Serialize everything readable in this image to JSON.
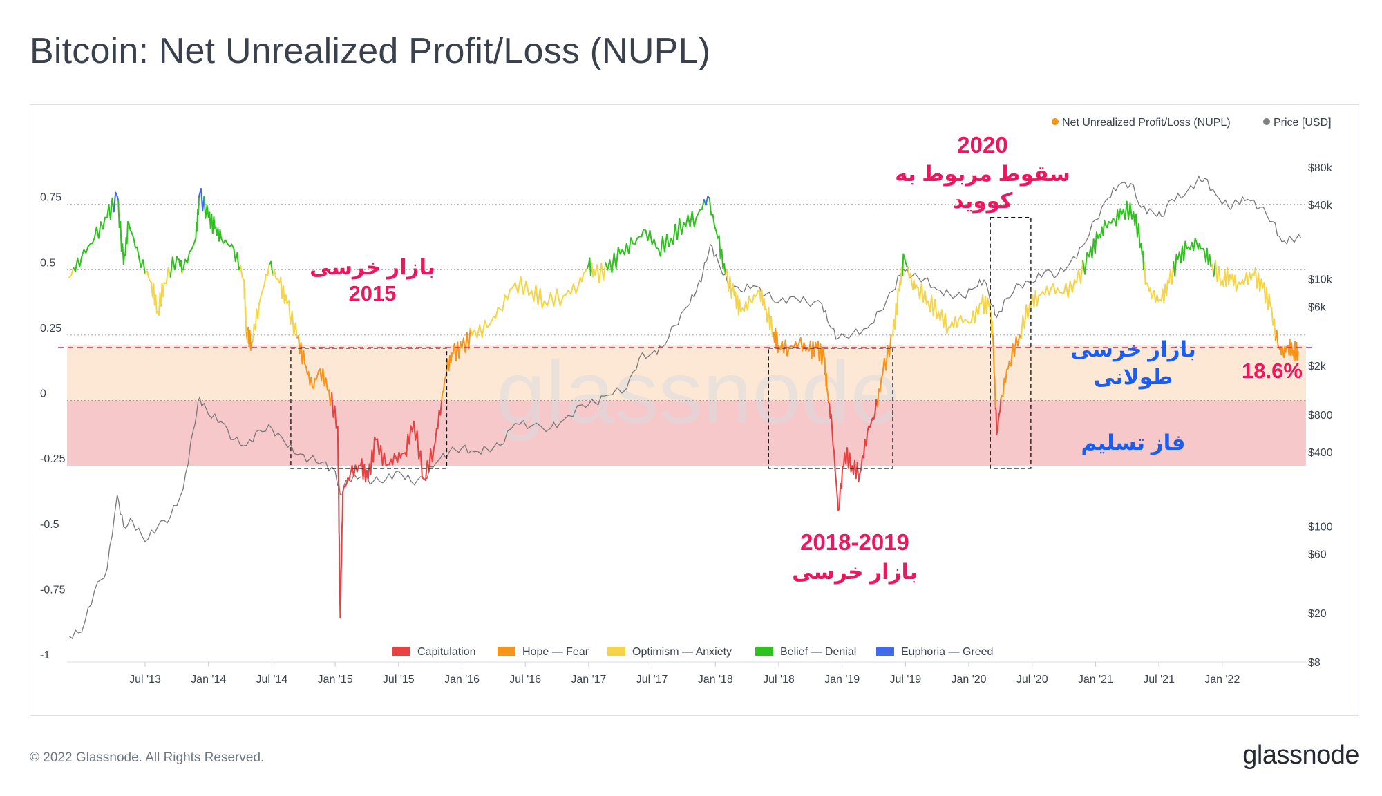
{
  "title": "Bitcoin: Net Unrealized Profit/Loss (NUPL)",
  "footer": "© 2022 Glassnode. All Rights Reserved.",
  "brand": "glassnode",
  "watermark": "glassnode",
  "legend_top": [
    {
      "label": "Net Unrealized Profit/Loss (NUPL)",
      "color": "#f7931a"
    },
    {
      "label": "Price [USD]",
      "color": "#808080"
    }
  ],
  "legend_bottom": [
    {
      "label": "Capitulation",
      "color": "#e84142"
    },
    {
      "label": "Hope — Fear",
      "color": "#f7931a"
    },
    {
      "label": "Optimism — Anxiety",
      "color": "#f5d547"
    },
    {
      "label": "Belief — Denial",
      "color": "#2ec21c"
    },
    {
      "label": "Euphoria — Greed",
      "color": "#4169e8"
    }
  ],
  "annotations": {
    "bear2015": [
      "بازار خرسی",
      "2015"
    ],
    "covid2020": [
      "2020",
      "سقوط مربوط به",
      "کووید"
    ],
    "bear2018": [
      "2018-2019",
      "بازار خرسی"
    ],
    "long_bear": [
      "بازار خرسی",
      "طولانی"
    ],
    "capitulation_phase": "فاز تسلیم",
    "current_value": "18.6%"
  },
  "colors": {
    "annotation_red": "#f0165d",
    "annotation_blue": "#1a5df0",
    "band_fear": "#fde8d5",
    "band_capitulation": "#f7c8ca",
    "price_line": "#7a7a7a"
  },
  "chart_data": {
    "type": "line",
    "title": "Bitcoin: Net Unrealized Profit/Loss (NUPL)",
    "x_ticks": [
      "Jul '13",
      "Jan '14",
      "Jul '14",
      "Jan '15",
      "Jul '15",
      "Jan '16",
      "Jul '16",
      "Jan '17",
      "Jul '17",
      "Jan '18",
      "Jul '18",
      "Jan '19",
      "Jul '19",
      "Jan '20",
      "Jul '20",
      "Jan '21",
      "Jul '21",
      "Jan '22"
    ],
    "xlim": [
      2012.9,
      2022.65
    ],
    "y_left": {
      "ticks": [
        "0.75",
        "0.5",
        "0.25",
        "0",
        "-0.25",
        "-0.5",
        "-0.75",
        "-1"
      ],
      "ylim": [
        -1,
        0.95
      ]
    },
    "y_right": {
      "ticks": [
        "$80k",
        "$40k",
        "$10k",
        "$6k",
        "$2k",
        "$800",
        "$400",
        "$100",
        "$60",
        "$20",
        "$8"
      ],
      "values": [
        80000,
        40000,
        10000,
        6000,
        2000,
        800,
        400,
        100,
        60,
        20,
        8
      ],
      "scale": "log"
    },
    "zones": [
      {
        "name": "Capitulation",
        "from": -1,
        "to": 0,
        "color": "#e84142"
      },
      {
        "name": "Hope — Fear",
        "from": 0,
        "to": 0.25,
        "color": "#f7931a"
      },
      {
        "name": "Optimism — Anxiety",
        "from": 0.25,
        "to": 0.5,
        "color": "#f5d547"
      },
      {
        "name": "Belief — Denial",
        "from": 0.5,
        "to": 0.75,
        "color": "#2ec21c"
      },
      {
        "name": "Euphoria — Greed",
        "from": 0.75,
        "to": 1,
        "color": "#4169e8"
      }
    ],
    "reference_line": {
      "value": 0.186,
      "label": "18.6%"
    },
    "shaded_bands": [
      {
        "from": 0,
        "to": 0.21,
        "label": "بازار خرسی طولانی"
      },
      {
        "from": -0.25,
        "to": 0,
        "label": "فاز تسلیم"
      }
    ],
    "highlight_boxes": [
      {
        "x_from": 2014.65,
        "x_to": 2015.88,
        "y_from": -0.26,
        "y_to": 0.2,
        "label": "2015"
      },
      {
        "x_from": 2018.42,
        "x_to": 2019.4,
        "y_from": -0.26,
        "y_to": 0.2,
        "label": "2018-2019"
      },
      {
        "x_from": 2020.17,
        "x_to": 2020.49,
        "y_from": -0.26,
        "y_to": 0.7,
        "label": "2020"
      }
    ],
    "series": [
      {
        "name": "Net Unrealized Profit/Loss (NUPL)",
        "axis": "left",
        "points": [
          [
            2012.9,
            0.47
          ],
          [
            2013.0,
            0.55
          ],
          [
            2013.1,
            0.62
          ],
          [
            2013.2,
            0.7
          ],
          [
            2013.28,
            0.78
          ],
          [
            2013.33,
            0.52
          ],
          [
            2013.37,
            0.68
          ],
          [
            2013.45,
            0.55
          ],
          [
            2013.55,
            0.45
          ],
          [
            2013.6,
            0.34
          ],
          [
            2013.65,
            0.45
          ],
          [
            2013.75,
            0.55
          ],
          [
            2013.8,
            0.5
          ],
          [
            2013.9,
            0.62
          ],
          [
            2013.93,
            0.79
          ],
          [
            2014.0,
            0.7
          ],
          [
            2014.05,
            0.66
          ],
          [
            2014.1,
            0.62
          ],
          [
            2014.2,
            0.58
          ],
          [
            2014.28,
            0.46
          ],
          [
            2014.3,
            0.26
          ],
          [
            2014.34,
            0.22
          ],
          [
            2014.4,
            0.37
          ],
          [
            2014.48,
            0.52
          ],
          [
            2014.56,
            0.45
          ],
          [
            2014.62,
            0.37
          ],
          [
            2014.7,
            0.24
          ],
          [
            2014.76,
            0.14
          ],
          [
            2014.82,
            0.05
          ],
          [
            2014.88,
            0.12
          ],
          [
            2014.95,
            0.04
          ],
          [
            2015.02,
            -0.1
          ],
          [
            2015.04,
            -0.83
          ],
          [
            2015.06,
            -0.35
          ],
          [
            2015.12,
            -0.28
          ],
          [
            2015.2,
            -0.25
          ],
          [
            2015.26,
            -0.3
          ],
          [
            2015.32,
            -0.15
          ],
          [
            2015.4,
            -0.25
          ],
          [
            2015.48,
            -0.22
          ],
          [
            2015.55,
            -0.2
          ],
          [
            2015.62,
            -0.08
          ],
          [
            2015.7,
            -0.3
          ],
          [
            2015.78,
            -0.18
          ],
          [
            2015.84,
            0.0
          ],
          [
            2015.88,
            0.12
          ],
          [
            2015.93,
            0.18
          ],
          [
            2016.0,
            0.2
          ],
          [
            2016.08,
            0.25
          ],
          [
            2016.2,
            0.28
          ],
          [
            2016.3,
            0.35
          ],
          [
            2016.42,
            0.45
          ],
          [
            2016.55,
            0.42
          ],
          [
            2016.65,
            0.38
          ],
          [
            2016.8,
            0.4
          ],
          [
            2016.92,
            0.44
          ],
          [
            2017.0,
            0.52
          ],
          [
            2017.05,
            0.48
          ],
          [
            2017.15,
            0.5
          ],
          [
            2017.25,
            0.56
          ],
          [
            2017.35,
            0.6
          ],
          [
            2017.45,
            0.65
          ],
          [
            2017.55,
            0.58
          ],
          [
            2017.65,
            0.62
          ],
          [
            2017.75,
            0.68
          ],
          [
            2017.85,
            0.7
          ],
          [
            2017.94,
            0.78
          ],
          [
            2018.02,
            0.62
          ],
          [
            2018.08,
            0.48
          ],
          [
            2018.15,
            0.4
          ],
          [
            2018.2,
            0.34
          ],
          [
            2018.28,
            0.38
          ],
          [
            2018.35,
            0.42
          ],
          [
            2018.4,
            0.35
          ],
          [
            2018.46,
            0.26
          ],
          [
            2018.5,
            0.21
          ],
          [
            2018.58,
            0.2
          ],
          [
            2018.66,
            0.22
          ],
          [
            2018.74,
            0.19
          ],
          [
            2018.8,
            0.2
          ],
          [
            2018.86,
            0.16
          ],
          [
            2018.88,
            0.05
          ],
          [
            2018.92,
            -0.1
          ],
          [
            2018.97,
            -0.42
          ],
          [
            2019.02,
            -0.2
          ],
          [
            2019.08,
            -0.25
          ],
          [
            2019.14,
            -0.28
          ],
          [
            2019.2,
            -0.12
          ],
          [
            2019.26,
            -0.05
          ],
          [
            2019.32,
            0.1
          ],
          [
            2019.4,
            0.25
          ],
          [
            2019.45,
            0.42
          ],
          [
            2019.49,
            0.55
          ],
          [
            2019.55,
            0.45
          ],
          [
            2019.6,
            0.43
          ],
          [
            2019.68,
            0.38
          ],
          [
            2019.76,
            0.34
          ],
          [
            2019.84,
            0.28
          ],
          [
            2019.92,
            0.31
          ],
          [
            2020.02,
            0.3
          ],
          [
            2020.1,
            0.37
          ],
          [
            2020.16,
            0.36
          ],
          [
            2020.19,
            0.25
          ],
          [
            2020.22,
            -0.13
          ],
          [
            2020.26,
            0.02
          ],
          [
            2020.32,
            0.15
          ],
          [
            2020.4,
            0.25
          ],
          [
            2020.48,
            0.37
          ],
          [
            2020.55,
            0.4
          ],
          [
            2020.65,
            0.43
          ],
          [
            2020.75,
            0.41
          ],
          [
            2020.85,
            0.45
          ],
          [
            2020.95,
            0.55
          ],
          [
            2021.02,
            0.62
          ],
          [
            2021.08,
            0.67
          ],
          [
            2021.15,
            0.69
          ],
          [
            2021.22,
            0.73
          ],
          [
            2021.3,
            0.72
          ],
          [
            2021.36,
            0.6
          ],
          [
            2021.4,
            0.45
          ],
          [
            2021.45,
            0.4
          ],
          [
            2021.52,
            0.38
          ],
          [
            2021.58,
            0.45
          ],
          [
            2021.65,
            0.54
          ],
          [
            2021.72,
            0.58
          ],
          [
            2021.8,
            0.6
          ],
          [
            2021.86,
            0.57
          ],
          [
            2021.92,
            0.52
          ],
          [
            2022.0,
            0.46
          ],
          [
            2022.06,
            0.48
          ],
          [
            2022.12,
            0.44
          ],
          [
            2022.18,
            0.46
          ],
          [
            2022.25,
            0.48
          ],
          [
            2022.32,
            0.43
          ],
          [
            2022.38,
            0.36
          ],
          [
            2022.44,
            0.21
          ],
          [
            2022.48,
            0.18
          ],
          [
            2022.52,
            0.21
          ],
          [
            2022.56,
            0.19
          ],
          [
            2022.6,
            0.186
          ]
        ]
      },
      {
        "name": "Price [USD]",
        "axis": "right",
        "points": [
          [
            2012.9,
            13
          ],
          [
            2013.0,
            14
          ],
          [
            2013.1,
            30
          ],
          [
            2013.2,
            45
          ],
          [
            2013.28,
            180
          ],
          [
            2013.33,
            100
          ],
          [
            2013.4,
            110
          ],
          [
            2013.5,
            75
          ],
          [
            2013.6,
            100
          ],
          [
            2013.7,
            120
          ],
          [
            2013.8,
            200
          ],
          [
            2013.88,
            600
          ],
          [
            2013.93,
            1100
          ],
          [
            2014.0,
            800
          ],
          [
            2014.1,
            700
          ],
          [
            2014.2,
            500
          ],
          [
            2014.3,
            450
          ],
          [
            2014.4,
            600
          ],
          [
            2014.5,
            620
          ],
          [
            2014.6,
            480
          ],
          [
            2014.7,
            380
          ],
          [
            2014.8,
            350
          ],
          [
            2014.9,
            330
          ],
          [
            2015.0,
            280
          ],
          [
            2015.04,
            180
          ],
          [
            2015.1,
            240
          ],
          [
            2015.2,
            250
          ],
          [
            2015.3,
            230
          ],
          [
            2015.4,
            240
          ],
          [
            2015.5,
            280
          ],
          [
            2015.6,
            230
          ],
          [
            2015.7,
            240
          ],
          [
            2015.8,
            330
          ],
          [
            2015.9,
            400
          ],
          [
            2016.0,
            430
          ],
          [
            2016.1,
            400
          ],
          [
            2016.2,
            420
          ],
          [
            2016.3,
            450
          ],
          [
            2016.42,
            680
          ],
          [
            2016.55,
            650
          ],
          [
            2016.7,
            620
          ],
          [
            2016.8,
            720
          ],
          [
            2016.95,
            960
          ],
          [
            2017.05,
            1000
          ],
          [
            2017.15,
            1150
          ],
          [
            2017.3,
            1300
          ],
          [
            2017.4,
            2300
          ],
          [
            2017.5,
            2500
          ],
          [
            2017.58,
            2800
          ],
          [
            2017.68,
            4200
          ],
          [
            2017.78,
            6000
          ],
          [
            2017.85,
            8000
          ],
          [
            2017.9,
            11000
          ],
          [
            2017.96,
            19000
          ],
          [
            2018.02,
            14000
          ],
          [
            2018.1,
            9000
          ],
          [
            2018.2,
            8000
          ],
          [
            2018.3,
            8800
          ],
          [
            2018.4,
            7500
          ],
          [
            2018.5,
            6500
          ],
          [
            2018.62,
            7200
          ],
          [
            2018.72,
            6500
          ],
          [
            2018.84,
            6300
          ],
          [
            2018.9,
            4200
          ],
          [
            2018.97,
            3300
          ],
          [
            2019.08,
            3600
          ],
          [
            2019.2,
            4000
          ],
          [
            2019.3,
            5500
          ],
          [
            2019.4,
            8000
          ],
          [
            2019.48,
            12000
          ],
          [
            2019.55,
            10500
          ],
          [
            2019.65,
            10000
          ],
          [
            2019.75,
            8200
          ],
          [
            2019.85,
            7500
          ],
          [
            2019.95,
            7200
          ],
          [
            2020.05,
            8500
          ],
          [
            2020.12,
            9800
          ],
          [
            2020.19,
            6000
          ],
          [
            2020.22,
            4900
          ],
          [
            2020.3,
            7000
          ],
          [
            2020.4,
            9000
          ],
          [
            2020.5,
            9300
          ],
          [
            2020.6,
            11500
          ],
          [
            2020.7,
            10800
          ],
          [
            2020.8,
            13500
          ],
          [
            2020.9,
            18500
          ],
          [
            2021.0,
            30000
          ],
          [
            2021.1,
            45000
          ],
          [
            2021.18,
            57000
          ],
          [
            2021.28,
            59000
          ],
          [
            2021.36,
            38000
          ],
          [
            2021.45,
            35000
          ],
          [
            2021.52,
            32000
          ],
          [
            2021.6,
            44000
          ],
          [
            2021.7,
            47000
          ],
          [
            2021.8,
            62000
          ],
          [
            2021.86,
            65000
          ],
          [
            2021.95,
            48000
          ],
          [
            2022.05,
            38000
          ],
          [
            2022.12,
            42000
          ],
          [
            2022.2,
            44000
          ],
          [
            2022.3,
            38000
          ],
          [
            2022.4,
            29000
          ],
          [
            2022.47,
            20000
          ],
          [
            2022.55,
            21000
          ],
          [
            2022.62,
            21500
          ]
        ]
      }
    ]
  }
}
